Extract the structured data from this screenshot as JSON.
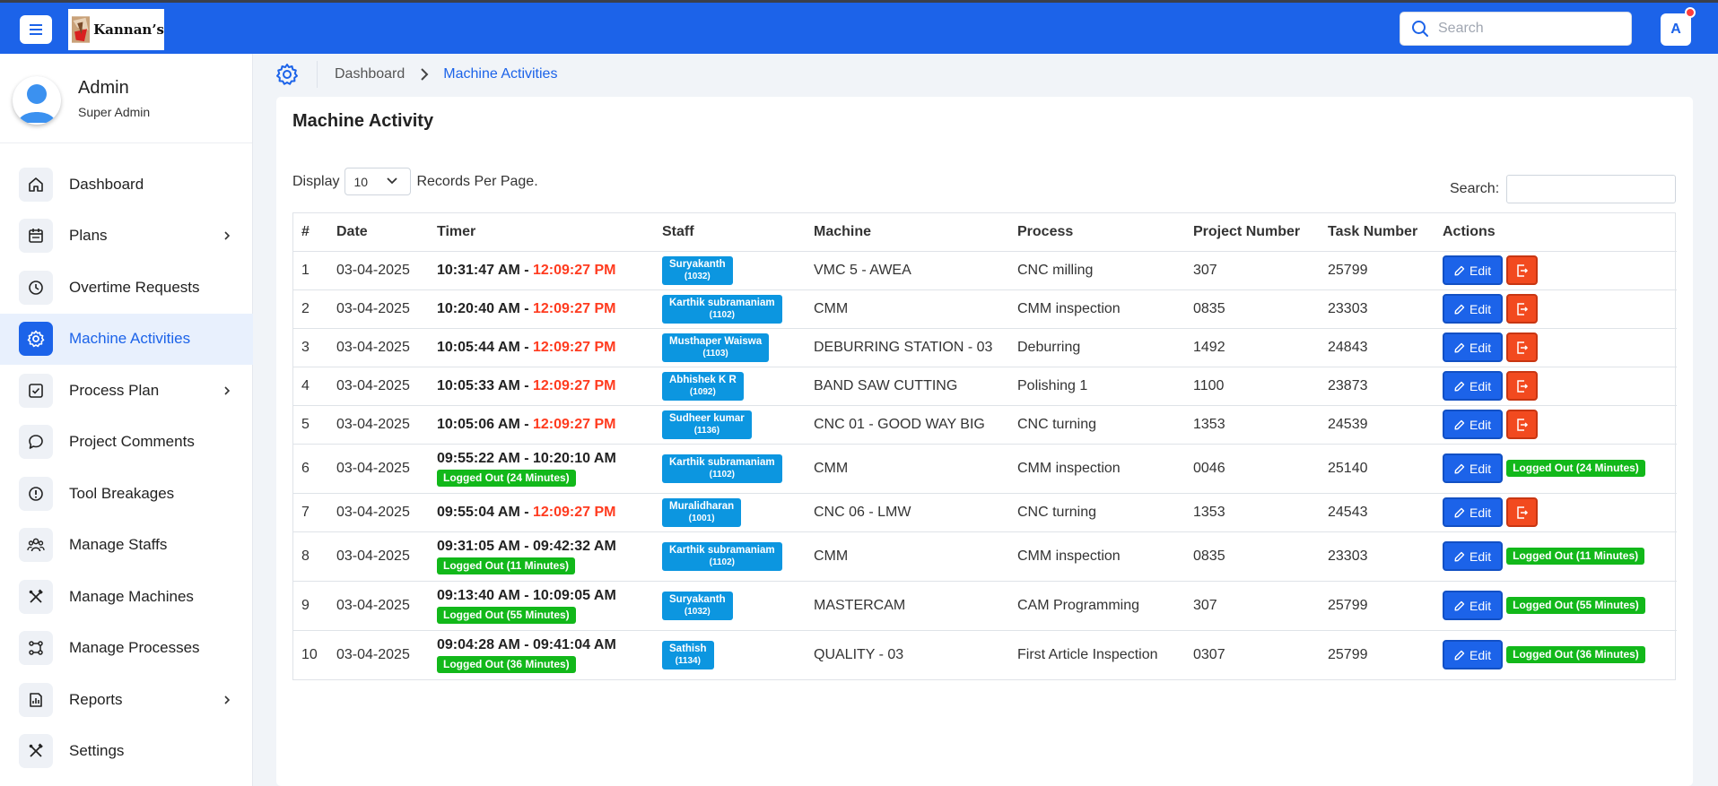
{
  "header": {
    "logo_text": "Kannan’s",
    "search_placeholder": "Search",
    "avatar_letter": "A"
  },
  "colors": {
    "primary": "#1c63e9",
    "danger": "#f24a1f",
    "success": "#12b81a",
    "staff_badge": "#0c96e0"
  },
  "profile": {
    "name": "Admin",
    "role": "Super Admin"
  },
  "sidebar": {
    "items": [
      {
        "label": "Dashboard",
        "icon": "home-icon"
      },
      {
        "label": "Plans",
        "icon": "calendar-icon",
        "has_submenu": true
      },
      {
        "label": "Overtime Requests",
        "icon": "clock-icon"
      },
      {
        "label": "Machine Activities",
        "icon": "gear-icon",
        "active": true
      },
      {
        "label": "Process Plan",
        "icon": "checkbox-icon",
        "has_submenu": true
      },
      {
        "label": "Project Comments",
        "icon": "comment-icon"
      },
      {
        "label": "Tool Breakages",
        "icon": "alert-icon"
      },
      {
        "label": "Manage Staffs",
        "icon": "users-icon"
      },
      {
        "label": "Manage Machines",
        "icon": "tools-icon"
      },
      {
        "label": "Manage Processes",
        "icon": "flow-icon"
      },
      {
        "label": "Reports",
        "icon": "report-icon",
        "has_submenu": true
      },
      {
        "label": "Settings",
        "icon": "settings-tools-icon"
      }
    ]
  },
  "breadcrumb": {
    "parent": "Dashboard",
    "current": "Machine Activities"
  },
  "main": {
    "title": "Machine Activity",
    "display_label": "Display",
    "per_page_value": "10",
    "per_page_suffix": "Records Per Page.",
    "search_label": "Search:",
    "search_value": "",
    "edit_label": "Edit"
  },
  "table": {
    "columns": [
      "#",
      "Date",
      "Timer",
      "Staff",
      "Machine",
      "Process",
      "Project Number",
      "Task Number",
      "Actions"
    ],
    "rows": [
      {
        "no": "1",
        "date": "03-04-2025",
        "start": "10:31:47 AM",
        "sep": " - ",
        "end": "12:09:27 PM",
        "running": true,
        "logged_out": "",
        "staff_name": "Suryakanth",
        "staff_id": "(1032)",
        "machine": "VMC 5 - AWEA",
        "process": "CNC milling",
        "project": "307",
        "task": "25799"
      },
      {
        "no": "2",
        "date": "03-04-2025",
        "start": "10:20:40 AM",
        "sep": " - ",
        "end": "12:09:27 PM",
        "running": true,
        "logged_out": "",
        "staff_name": "Karthik subramaniam",
        "staff_id": "(1102)",
        "machine": "CMM",
        "process": "CMM inspection",
        "project": "0835",
        "task": "23303"
      },
      {
        "no": "3",
        "date": "03-04-2025",
        "start": "10:05:44 AM",
        "sep": " - ",
        "end": "12:09:27 PM",
        "running": true,
        "logged_out": "",
        "staff_name": "Musthaper Waiswa",
        "staff_id": "(1103)",
        "machine": "DEBURRING STATION - 03",
        "process": "Deburring",
        "project": "1492",
        "task": "24843"
      },
      {
        "no": "4",
        "date": "03-04-2025",
        "start": "10:05:33 AM",
        "sep": " - ",
        "end": "12:09:27 PM",
        "running": true,
        "logged_out": "",
        "staff_name": "Abhishek K R",
        "staff_id": "(1092)",
        "machine": "BAND SAW CUTTING",
        "process": "Polishing 1",
        "project": "1100",
        "task": "23873"
      },
      {
        "no": "5",
        "date": "03-04-2025",
        "start": "10:05:06 AM",
        "sep": " - ",
        "end": "12:09:27 PM",
        "running": true,
        "logged_out": "",
        "staff_name": "Sudheer kumar",
        "staff_id": "(1136)",
        "machine": "CNC 01 - GOOD WAY BIG",
        "process": "CNC turning",
        "project": "1353",
        "task": "24539"
      },
      {
        "no": "6",
        "date": "03-04-2025",
        "start": "09:55:22 AM",
        "sep": " - ",
        "end": "10:20:10 AM",
        "running": false,
        "logged_out": "Logged Out (24 Minutes)",
        "staff_name": "Karthik subramaniam",
        "staff_id": "(1102)",
        "machine": "CMM",
        "process": "CMM inspection",
        "project": "0046",
        "task": "25140"
      },
      {
        "no": "7",
        "date": "03-04-2025",
        "start": "09:55:04 AM",
        "sep": " - ",
        "end": "12:09:27 PM",
        "running": true,
        "logged_out": "",
        "staff_name": "Muralidharan",
        "staff_id": "(1001)",
        "machine": "CNC 06 - LMW",
        "process": "CNC turning",
        "project": "1353",
        "task": "24543"
      },
      {
        "no": "8",
        "date": "03-04-2025",
        "start": "09:31:05 AM",
        "sep": " - ",
        "end": "09:42:32 AM",
        "running": false,
        "logged_out": "Logged Out (11 Minutes)",
        "staff_name": "Karthik subramaniam",
        "staff_id": "(1102)",
        "machine": "CMM",
        "process": "CMM inspection",
        "project": "0835",
        "task": "23303"
      },
      {
        "no": "9",
        "date": "03-04-2025",
        "start": "09:13:40 AM",
        "sep": " - ",
        "end": "10:09:05 AM",
        "running": false,
        "logged_out": "Logged Out (55 Minutes)",
        "staff_name": "Suryakanth",
        "staff_id": "(1032)",
        "machine": "MASTERCAM",
        "process": "CAM Programming",
        "project": "307",
        "task": "25799"
      },
      {
        "no": "10",
        "date": "03-04-2025",
        "start": "09:04:28 AM",
        "sep": " - ",
        "end": "09:41:04 AM",
        "running": false,
        "logged_out": "Logged Out (36 Minutes)",
        "staff_name": "Sathish",
        "staff_id": "(1134)",
        "machine": "QUALITY - 03",
        "process": "First Article Inspection",
        "project": "0307",
        "task": "25799"
      }
    ]
  }
}
